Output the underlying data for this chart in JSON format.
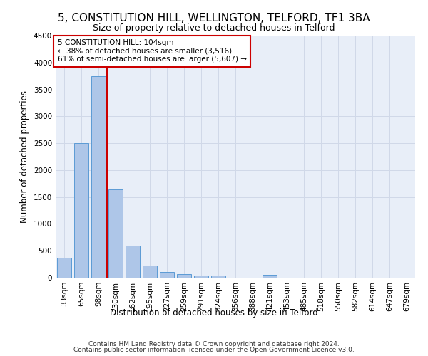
{
  "title": "5, CONSTITUTION HILL, WELLINGTON, TELFORD, TF1 3BA",
  "subtitle": "Size of property relative to detached houses in Telford",
  "xlabel": "Distribution of detached houses by size in Telford",
  "ylabel": "Number of detached properties",
  "footer_line1": "Contains HM Land Registry data © Crown copyright and database right 2024.",
  "footer_line2": "Contains public sector information licensed under the Open Government Licence v3.0.",
  "categories": [
    "33sqm",
    "65sqm",
    "98sqm",
    "130sqm",
    "162sqm",
    "195sqm",
    "227sqm",
    "259sqm",
    "291sqm",
    "324sqm",
    "356sqm",
    "388sqm",
    "421sqm",
    "453sqm",
    "485sqm",
    "518sqm",
    "550sqm",
    "582sqm",
    "614sqm",
    "647sqm",
    "679sqm"
  ],
  "values": [
    370,
    2500,
    3750,
    1640,
    590,
    225,
    105,
    60,
    35,
    35,
    0,
    0,
    55,
    0,
    0,
    0,
    0,
    0,
    0,
    0,
    0
  ],
  "bar_color": "#aec6e8",
  "bar_edge_color": "#5b9bd5",
  "grid_color": "#d0d8e8",
  "annotation_box_color": "#cc0000",
  "property_line_color": "#cc0000",
  "property_bin_index": 2,
  "annotation_text_line1": "5 CONSTITUTION HILL: 104sqm",
  "annotation_text_line2": "← 38% of detached houses are smaller (3,516)",
  "annotation_text_line3": "61% of semi-detached houses are larger (5,607) →",
  "ylim": [
    0,
    4500
  ],
  "yticks": [
    0,
    500,
    1000,
    1500,
    2000,
    2500,
    3000,
    3500,
    4000,
    4500
  ],
  "background_color": "#e8eef8",
  "title_fontsize": 11,
  "subtitle_fontsize": 9,
  "axis_label_fontsize": 8.5,
  "tick_fontsize": 7.5,
  "annotation_fontsize": 7.5,
  "footer_fontsize": 6.5
}
